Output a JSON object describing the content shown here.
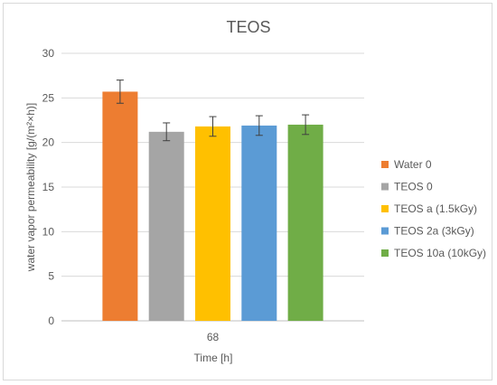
{
  "chart_data": {
    "type": "bar",
    "title": "TEOS",
    "xlabel": "Time [h]",
    "ylabel": "water vapor permeability [g/(m²×h)]",
    "categories": [
      "68"
    ],
    "ylim": [
      0,
      30
    ],
    "yticks": [
      0,
      5,
      10,
      15,
      20,
      25,
      30
    ],
    "grid": true,
    "legend_position": "right",
    "series": [
      {
        "name": "Water 0",
        "values": [
          25.7
        ],
        "error": [
          1.3
        ],
        "color": "#ed7d31"
      },
      {
        "name": "TEOS 0",
        "values": [
          21.2
        ],
        "error": [
          1.0
        ],
        "color": "#a5a5a5"
      },
      {
        "name": "TEOS a (1.5kGy)",
        "values": [
          21.8
        ],
        "error": [
          1.1
        ],
        "color": "#ffc000"
      },
      {
        "name": "TEOS 2a (3kGy)",
        "values": [
          21.9
        ],
        "error": [
          1.1
        ],
        "color": "#5b9bd5"
      },
      {
        "name": "TEOS 10a (10kGy)",
        "values": [
          22.0
        ],
        "error": [
          1.1
        ],
        "color": "#70ad47"
      }
    ]
  }
}
